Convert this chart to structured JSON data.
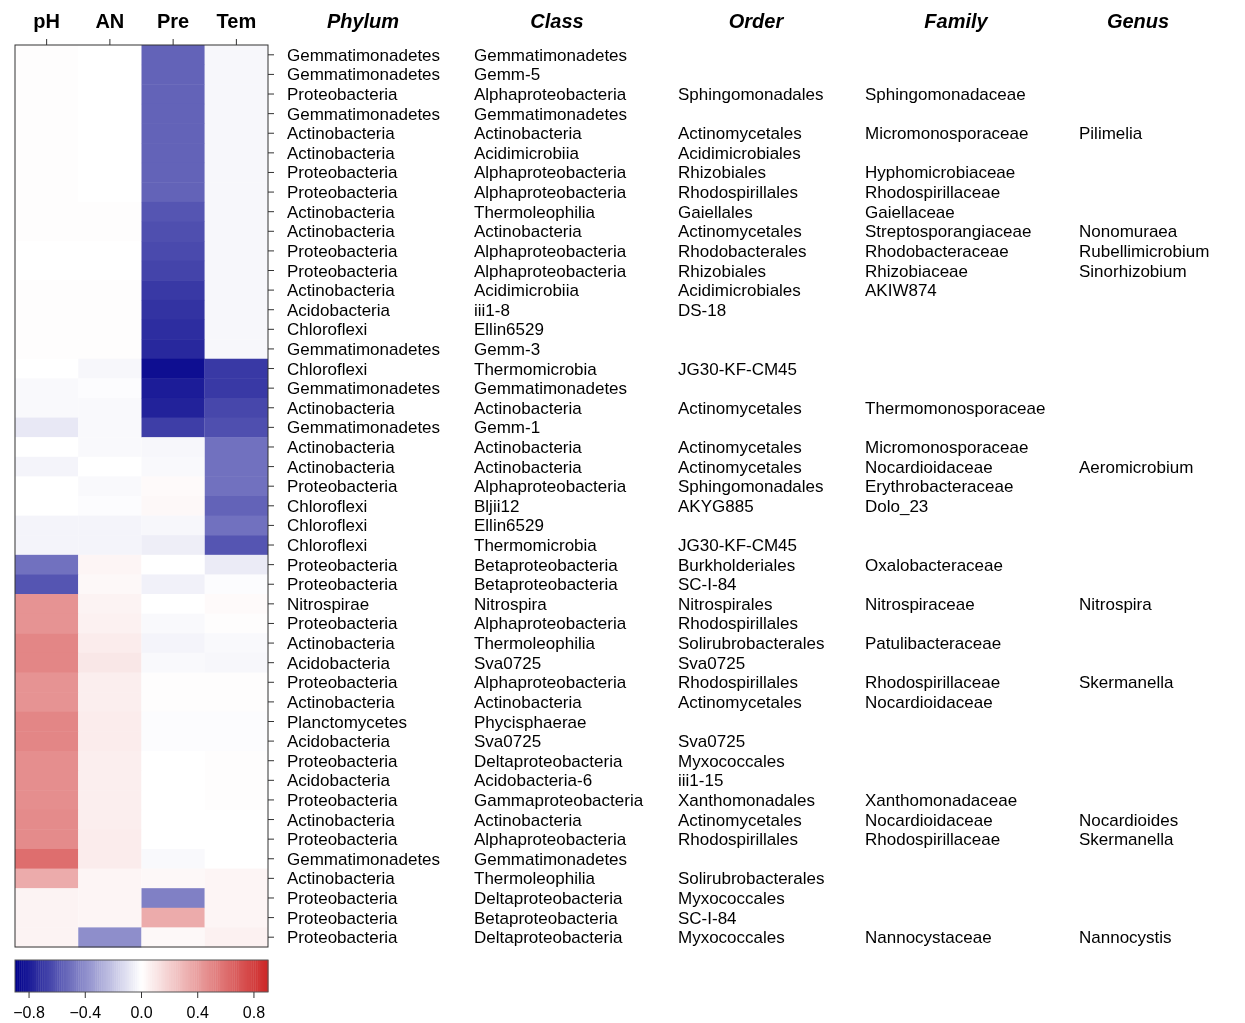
{
  "chart_data": [
    {
      "type": "heatmap",
      "categories": [
        "pH",
        "AN",
        "Pre",
        "Tem"
      ],
      "ylabel": "Phylum",
      "clim": [
        -0.9,
        0.9
      ],
      "cticks": [
        {
          "value": -0.8,
          "label": "−0.8"
        },
        {
          "value": -0.4,
          "label": "−0.4"
        },
        {
          "value": 0,
          "label": "0.0"
        },
        {
          "value": 0.4,
          "label": "0.4"
        },
        {
          "value": 0.8,
          "label": "0.8"
        }
      ],
      "y_categories": [
        "Gemmatimonadetes",
        "Gemmatimonadetes",
        "Proteobacteria",
        "Gemmatimonadetes",
        "Actinobacteria",
        "Actinobacteria",
        "Proteobacteria",
        "Proteobacteria",
        "Actinobacteria",
        "Actinobacteria",
        "Proteobacteria",
        "Proteobacteria",
        "Actinobacteria",
        "Acidobacteria",
        "Chloroflexi",
        "Gemmatimonadetes",
        "Chloroflexi",
        "Gemmatimonadetes",
        "Actinobacteria",
        "Gemmatimonadetes",
        "Actinobacteria",
        "Actinobacteria",
        "Proteobacteria",
        "Chloroflexi",
        "Chloroflexi",
        "Chloroflexi",
        "Proteobacteria",
        "Proteobacteria",
        "Nitrospirae",
        "Proteobacteria",
        "Actinobacteria",
        "Acidobacteria",
        "Proteobacteria",
        "Actinobacteria",
        "Planctomycetes",
        "Acidobacteria",
        "Proteobacteria",
        "Acidobacteria",
        "Proteobacteria",
        "Actinobacteria",
        "Proteobacteria",
        "Gemmatimonadetes",
        "Actinobacteria",
        "Proteobacteria",
        "Proteobacteria",
        "Proteobacteria"
      ],
      "cells": [
        [
          0.01,
          0,
          -0.55,
          -0.03
        ],
        [
          0.01,
          0,
          -0.55,
          -0.03
        ],
        [
          0.01,
          0,
          -0.55,
          -0.03
        ],
        [
          0.01,
          0,
          -0.55,
          -0.03
        ],
        [
          0.01,
          0,
          -0.55,
          -0.03
        ],
        [
          0.01,
          0,
          -0.55,
          -0.03
        ],
        [
          0.01,
          0,
          -0.55,
          -0.03
        ],
        [
          0.01,
          0,
          -0.55,
          -0.03
        ],
        [
          0.01,
          0.01,
          -0.6,
          -0.03
        ],
        [
          0.01,
          0.01,
          -0.62,
          -0.03
        ],
        [
          0,
          0,
          -0.64,
          -0.03
        ],
        [
          0,
          0,
          -0.66,
          -0.03
        ],
        [
          0.01,
          0.01,
          -0.7,
          -0.03
        ],
        [
          0.01,
          0.01,
          -0.72,
          -0.03
        ],
        [
          0.01,
          0.01,
          -0.74,
          -0.03
        ],
        [
          0.01,
          0.01,
          -0.76,
          -0.03
        ],
        [
          0,
          -0.03,
          -0.85,
          -0.7
        ],
        [
          -0.02,
          -0.01,
          -0.8,
          -0.7
        ],
        [
          -0.02,
          -0.02,
          -0.78,
          -0.65
        ],
        [
          -0.08,
          -0.02,
          -0.68,
          -0.62
        ],
        [
          0,
          -0.02,
          -0.03,
          -0.5
        ],
        [
          -0.04,
          0,
          -0.02,
          -0.5
        ],
        [
          0,
          -0.02,
          0.02,
          -0.5
        ],
        [
          0,
          -0.01,
          0.03,
          -0.55
        ],
        [
          -0.04,
          -0.04,
          -0.03,
          -0.5
        ],
        [
          -0.04,
          -0.04,
          -0.06,
          -0.6
        ],
        [
          -0.5,
          0.04,
          0,
          -0.07
        ],
        [
          -0.6,
          0.03,
          -0.05,
          -0.01
        ],
        [
          0.45,
          0.05,
          0,
          0.02
        ],
        [
          0.45,
          0.06,
          -0.02,
          0.01
        ],
        [
          0.5,
          0.08,
          -0.04,
          -0.02
        ],
        [
          0.5,
          0.1,
          -0.02,
          -0.03
        ],
        [
          0.45,
          0.07,
          0.01,
          0.01
        ],
        [
          0.45,
          0.07,
          0.01,
          0.01
        ],
        [
          0.5,
          0.08,
          -0.01,
          -0.01
        ],
        [
          0.5,
          0.08,
          -0.01,
          -0.01
        ],
        [
          0.47,
          0.07,
          0,
          0.01
        ],
        [
          0.47,
          0.07,
          0,
          0.01
        ],
        [
          0.47,
          0.07,
          0,
          0.01
        ],
        [
          0.48,
          0.07,
          0,
          0
        ],
        [
          0.48,
          0.08,
          0,
          0
        ],
        [
          0.6,
          0.08,
          -0.02,
          0
        ],
        [
          0.35,
          0.04,
          0.03,
          0.04
        ],
        [
          0.05,
          0.04,
          -0.45,
          0.04
        ],
        [
          0.05,
          0.04,
          0.35,
          0.04
        ],
        [
          0.05,
          -0.4,
          0.03,
          0.06
        ]
      ]
    },
    {
      "type": "other",
      "categories": [
        "Class",
        "Order",
        "Family",
        "Genus"
      ],
      "cell_labels": [
        [
          "Gemmatimonadetes",
          null,
          null,
          null
        ],
        [
          "Gemm-5",
          null,
          null,
          null
        ],
        [
          "Alphaproteobacteria",
          "Sphingomonadales",
          "Sphingomonadaceae",
          null
        ],
        [
          "Gemmatimonadetes",
          null,
          null,
          null
        ],
        [
          "Actinobacteria",
          "Actinomycetales",
          "Micromonosporaceae",
          "Pilimelia"
        ],
        [
          "Acidimicrobiia",
          "Acidimicrobiales",
          null,
          null
        ],
        [
          "Alphaproteobacteria",
          "Rhizobiales",
          "Hyphomicrobiaceae",
          null
        ],
        [
          "Alphaproteobacteria",
          "Rhodospirillales",
          "Rhodospirillaceae",
          null
        ],
        [
          "Thermoleophilia",
          "Gaiellales",
          "Gaiellaceae",
          null
        ],
        [
          "Actinobacteria",
          "Actinomycetales",
          "Streptosporangiaceae",
          "Nonomuraea"
        ],
        [
          "Alphaproteobacteria",
          "Rhodobacterales",
          "Rhodobacteraceae",
          "Rubellimicrobium"
        ],
        [
          "Alphaproteobacteria",
          "Rhizobiales",
          "Rhizobiaceae",
          "Sinorhizobium"
        ],
        [
          "Acidimicrobiia",
          "Acidimicrobiales",
          "AKIW874",
          null
        ],
        [
          "iii1-8",
          "DS-18",
          null,
          null
        ],
        [
          "Ellin6529",
          null,
          null,
          null
        ],
        [
          "Gemm-3",
          null,
          null,
          null
        ],
        [
          "Thermomicrobia",
          "JG30-KF-CM45",
          null,
          null
        ],
        [
          "Gemmatimonadetes",
          null,
          null,
          null
        ],
        [
          "Actinobacteria",
          "Actinomycetales",
          "Thermomonosporaceae",
          null
        ],
        [
          "Gemm-1",
          null,
          null,
          null
        ],
        [
          "Actinobacteria",
          "Actinomycetales",
          "Micromonosporaceae",
          null
        ],
        [
          "Actinobacteria",
          "Actinomycetales",
          "Nocardioidaceae",
          "Aeromicrobium"
        ],
        [
          "Alphaproteobacteria",
          "Sphingomonadales",
          "Erythrobacteraceae",
          null
        ],
        [
          "Bljii12",
          "AKYG885",
          "Dolo_23",
          null
        ],
        [
          "Ellin6529",
          null,
          null,
          null
        ],
        [
          "Thermomicrobia",
          "JG30-KF-CM45",
          null,
          null
        ],
        [
          "Betaproteobacteria",
          "Burkholderiales",
          "Oxalobacteraceae",
          null
        ],
        [
          "Betaproteobacteria",
          "SC-I-84",
          null,
          null
        ],
        [
          "Nitrospira",
          "Nitrospirales",
          "Nitrospiraceae",
          "Nitrospira"
        ],
        [
          "Alphaproteobacteria",
          "Rhodospirillales",
          null,
          null
        ],
        [
          "Thermoleophilia",
          "Solirubrobacterales",
          "Patulibacteraceae",
          null
        ],
        [
          "Sva0725",
          "Sva0725",
          null,
          null
        ],
        [
          "Alphaproteobacteria",
          "Rhodospirillales",
          "Rhodospirillaceae",
          "Skermanella"
        ],
        [
          "Actinobacteria",
          "Actinomycetales",
          "Nocardioidaceae",
          null
        ],
        [
          "Phycisphaerae",
          null,
          null,
          null
        ],
        [
          "Sva0725",
          "Sva0725",
          null,
          null
        ],
        [
          "Deltaproteobacteria",
          "Myxococcales",
          null,
          null
        ],
        [
          "Acidobacteria-6",
          "iii1-15",
          null,
          null
        ],
        [
          "Gammaproteobacteria",
          "Xanthomonadales",
          "Xanthomonadaceae",
          null
        ],
        [
          "Actinobacteria",
          "Actinomycetales",
          "Nocardioidaceae",
          "Nocardioides"
        ],
        [
          "Alphaproteobacteria",
          "Rhodospirillales",
          "Rhodospirillaceae",
          "Skermanella"
        ],
        [
          "Gemmatimonadetes",
          null,
          null,
          null
        ],
        [
          "Thermoleophilia",
          "Solirubrobacterales",
          null,
          null
        ],
        [
          "Deltaproteobacteria",
          "Myxococcales",
          null,
          null
        ],
        [
          "Betaproteobacteria",
          "SC-I-84",
          null,
          null
        ],
        [
          "Deltaproteobacteria",
          "Myxococcales",
          "Nannocystaceae",
          "Nannocystis"
        ]
      ]
    }
  ]
}
